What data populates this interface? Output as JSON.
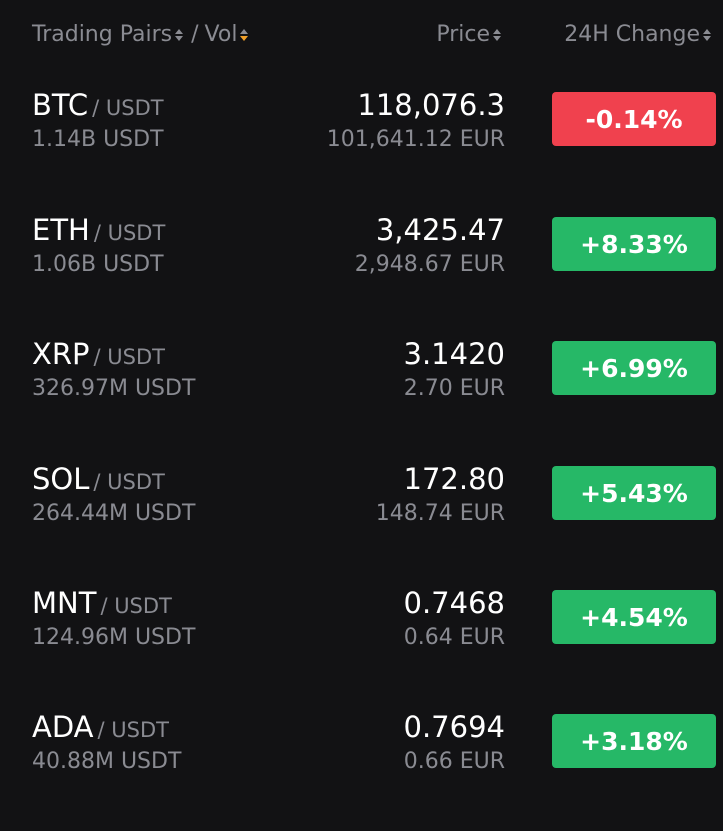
{
  "header": {
    "pairs_label": "Trading Pairs",
    "separator": "/",
    "vol_label": "Vol",
    "price_label": "Price",
    "change_label": "24H Change",
    "sort_icon": "sort-arrows-icon",
    "active_sort_color": "#f0a029"
  },
  "colors": {
    "background": "#121214",
    "negative": "#f0414e",
    "positive": "#26b867",
    "muted_text": "#8a8b92"
  },
  "rows": [
    {
      "base": "BTC",
      "quote": "/ USDT",
      "volume": "1.14B USDT",
      "price": "118,076.3",
      "fiat": "101,641.12 EUR",
      "change": "-0.14%",
      "direction": "neg"
    },
    {
      "base": "ETH",
      "quote": "/ USDT",
      "volume": "1.06B USDT",
      "price": "3,425.47",
      "fiat": "2,948.67 EUR",
      "change": "+8.33%",
      "direction": "pos"
    },
    {
      "base": "XRP",
      "quote": "/ USDT",
      "volume": "326.97M USDT",
      "price": "3.1420",
      "fiat": "2.70 EUR",
      "change": "+6.99%",
      "direction": "pos"
    },
    {
      "base": "SOL",
      "quote": "/ USDT",
      "volume": "264.44M USDT",
      "price": "172.80",
      "fiat": "148.74 EUR",
      "change": "+5.43%",
      "direction": "pos"
    },
    {
      "base": "MNT",
      "quote": "/ USDT",
      "volume": "124.96M USDT",
      "price": "0.7468",
      "fiat": "0.64 EUR",
      "change": "+4.54%",
      "direction": "pos"
    },
    {
      "base": "ADA",
      "quote": "/ USDT",
      "volume": "40.88M USDT",
      "price": "0.7694",
      "fiat": "0.66 EUR",
      "change": "+3.18%",
      "direction": "pos"
    }
  ]
}
